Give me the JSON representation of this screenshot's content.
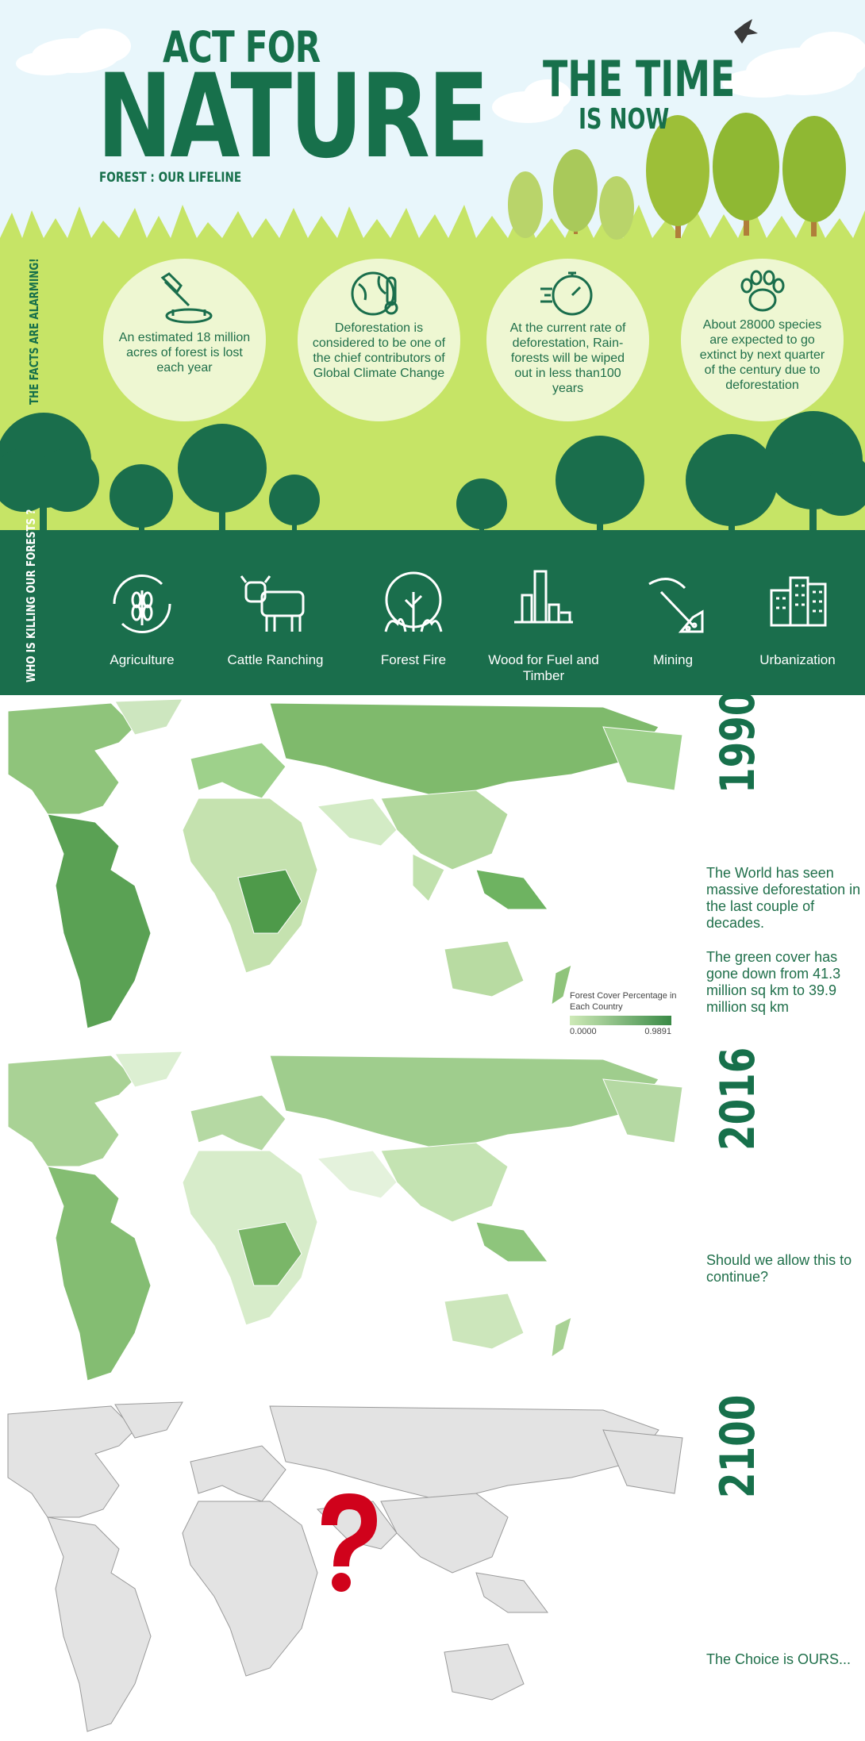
{
  "header": {
    "act_for": "ACT FOR",
    "nature": "NATURE",
    "subtitle": "FOREST : OUR LIFELINE",
    "time_title": "THE TIME",
    "time_sub": "IS NOW"
  },
  "facts": {
    "vertical_label": "THE FACTS ARE ALARMING!",
    "items": [
      {
        "icon": "axe-stump-icon",
        "text": "An estimated 18 million acres of forest is lost each year"
      },
      {
        "icon": "globe-thermometer-icon",
        "text": "Deforestation is considered to be one of the chief contributors of Global Climate Change"
      },
      {
        "icon": "stopwatch-icon",
        "text": "At the current rate of deforestation, Rain-forests will be wiped out in less than100 years"
      },
      {
        "icon": "paw-print-icon",
        "text": "About 28000 species are expected to go extinct by next quarter of the century due to deforestation"
      }
    ]
  },
  "killers": {
    "vertical_label": "WHO IS KILLING OUR FORESTS ?",
    "items": [
      {
        "icon": "wheat-icon",
        "label": "Agriculture"
      },
      {
        "icon": "cow-icon",
        "label": "Cattle Ranching"
      },
      {
        "icon": "forest-fire-icon",
        "label": "Forest Fire"
      },
      {
        "icon": "tree-stumps-icon",
        "label": "Wood for Fuel and Timber"
      },
      {
        "icon": "pickaxe-icon",
        "label": "Mining"
      },
      {
        "icon": "buildings-icon",
        "label": "Urbanization"
      }
    ]
  },
  "maps": [
    {
      "year": "1990",
      "text": [
        "The World has seen massive deforestation in the last couple of decades.",
        "The green cover has gone down from 41.3 million sq km to 39.9 million sq km"
      ]
    },
    {
      "year": "2016",
      "text": [
        "Should we allow this to continue?"
      ]
    },
    {
      "year": "2100",
      "text": [
        "The Choice is OURS..."
      ]
    }
  ],
  "legend": {
    "title": "Forest Cover Percentage in Each Country",
    "min": "0.0000",
    "max": "0.9891"
  },
  "colors": {
    "dark_green": "#17704b",
    "band_green": "#1a6e4c",
    "grass": "#c6e466",
    "question": "#d0021b"
  }
}
